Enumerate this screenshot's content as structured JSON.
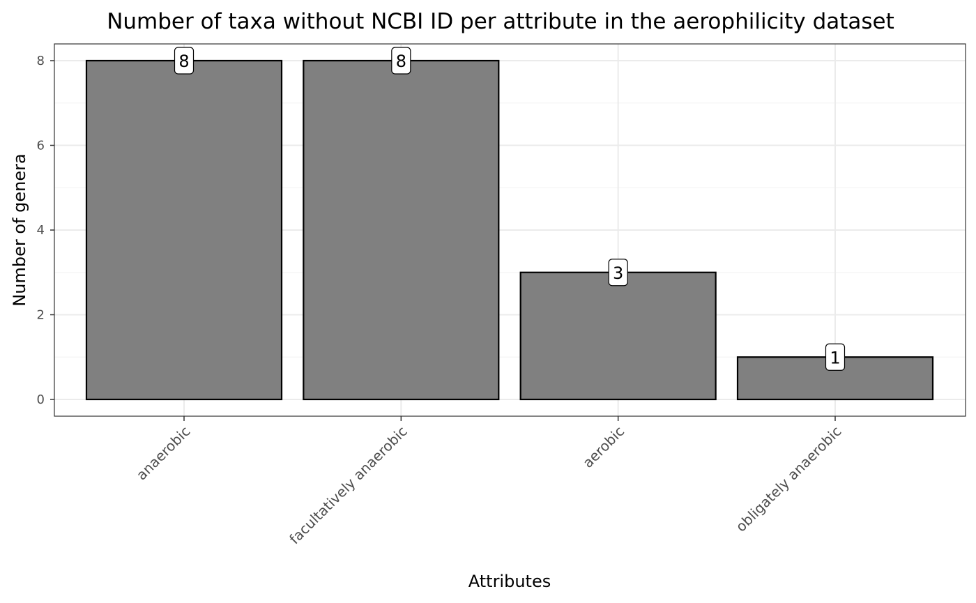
{
  "chart_data": {
    "type": "bar",
    "title": "Number of taxa without NCBI ID per attribute in the aerophilicity dataset",
    "xlabel": "Attributes",
    "ylabel": "Number of genera",
    "categories": [
      "anaerobic",
      "facultatively anaerobic",
      "aerobic",
      "obligately anaerobic"
    ],
    "values": [
      8,
      8,
      3,
      1
    ],
    "data_labels": [
      "8",
      "8",
      "3",
      "1"
    ],
    "yticks": [
      0,
      2,
      4,
      6,
      8
    ],
    "ytick_labels": [
      "0",
      "2",
      "4",
      "6",
      "8"
    ],
    "ylim": [
      -0.4,
      8.4
    ],
    "grid": true,
    "legend": "none",
    "colors": {
      "bar_fill": "#808080",
      "bar_stroke": "#000000",
      "grid_major": "#ebebeb",
      "grid_minor": "#f5f5f5",
      "panel_border": "#333333",
      "tick_text": "#4d4d4d"
    }
  }
}
